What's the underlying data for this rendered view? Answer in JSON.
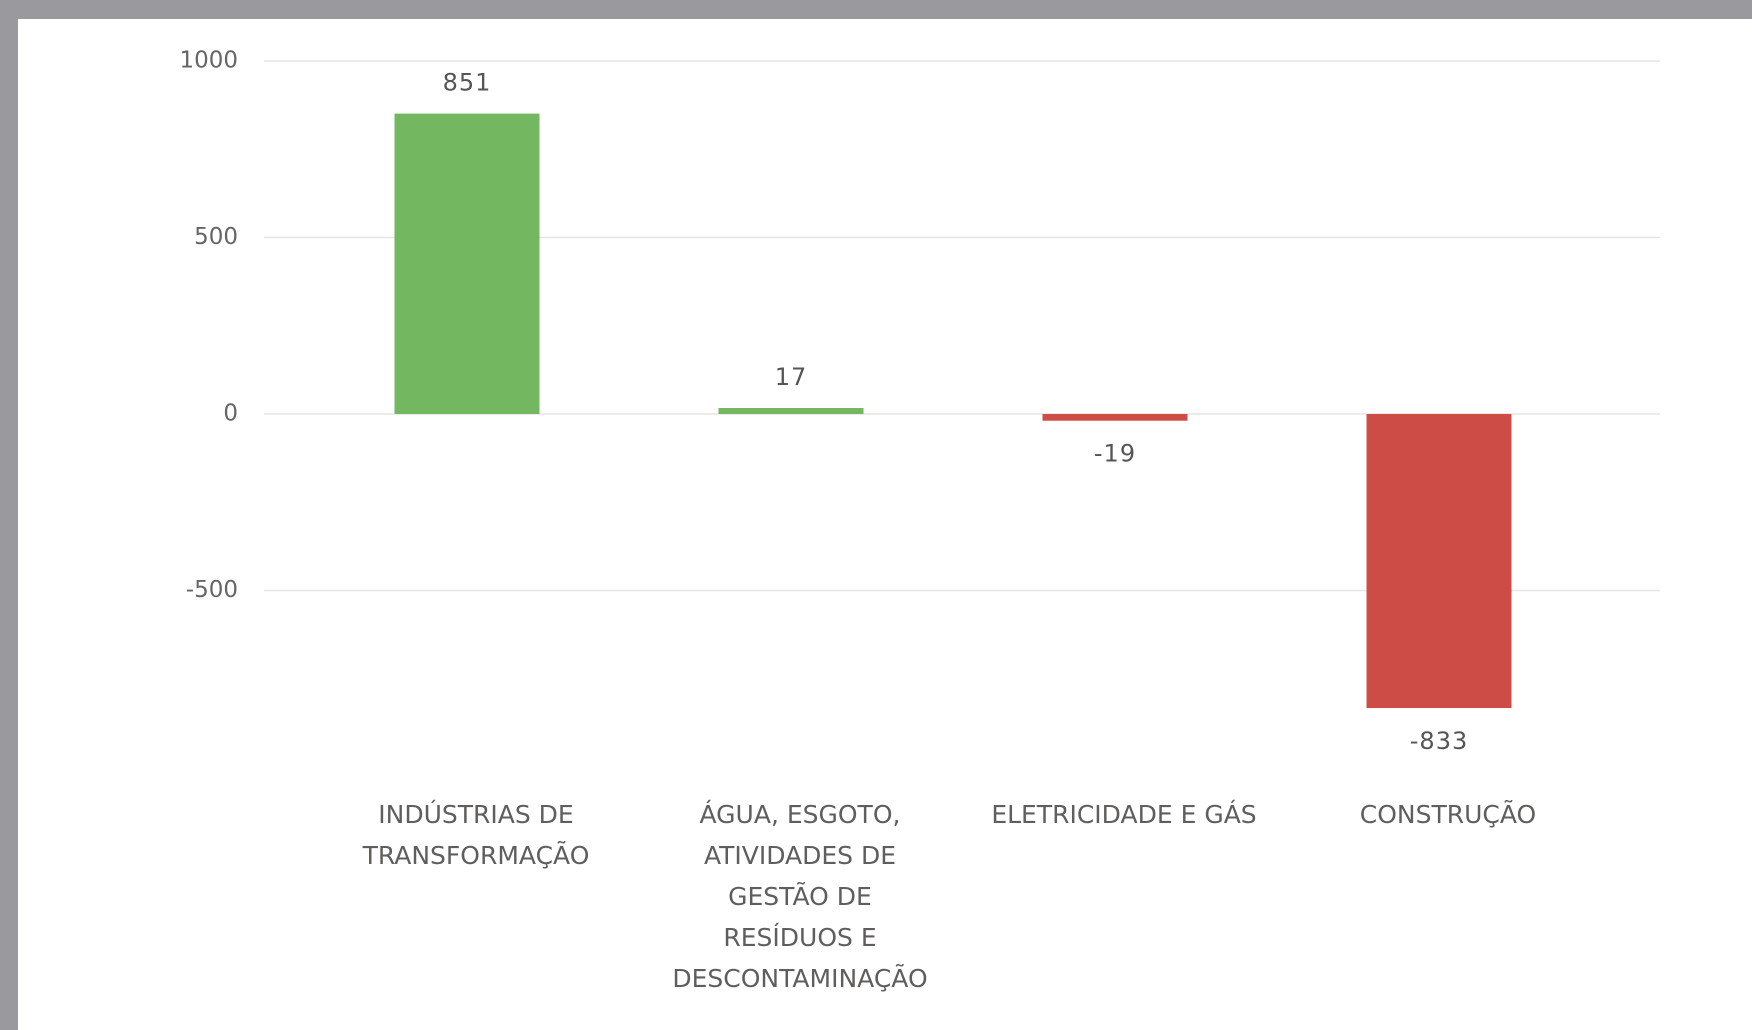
{
  "chart_data": {
    "type": "bar",
    "categories": [
      "INDÚSTRIAS DE\nTRANSFORMAÇÃO",
      "ÁGUA, ESGOTO,\nATIVIDADES DE\nGESTÃO DE\nRESÍDUOS E\nDESCONTAMINAÇÃO",
      "ELETRICIDADE E GÁS",
      "CONSTRUÇÃO"
    ],
    "values": [
      851,
      17,
      -19,
      -833
    ],
    "positive_color": "#73b761",
    "negative_color": "#cd4c46",
    "ylim": [
      -1000,
      1000
    ],
    "yticks": [
      -500,
      0,
      500,
      1000
    ],
    "grid": true
  }
}
